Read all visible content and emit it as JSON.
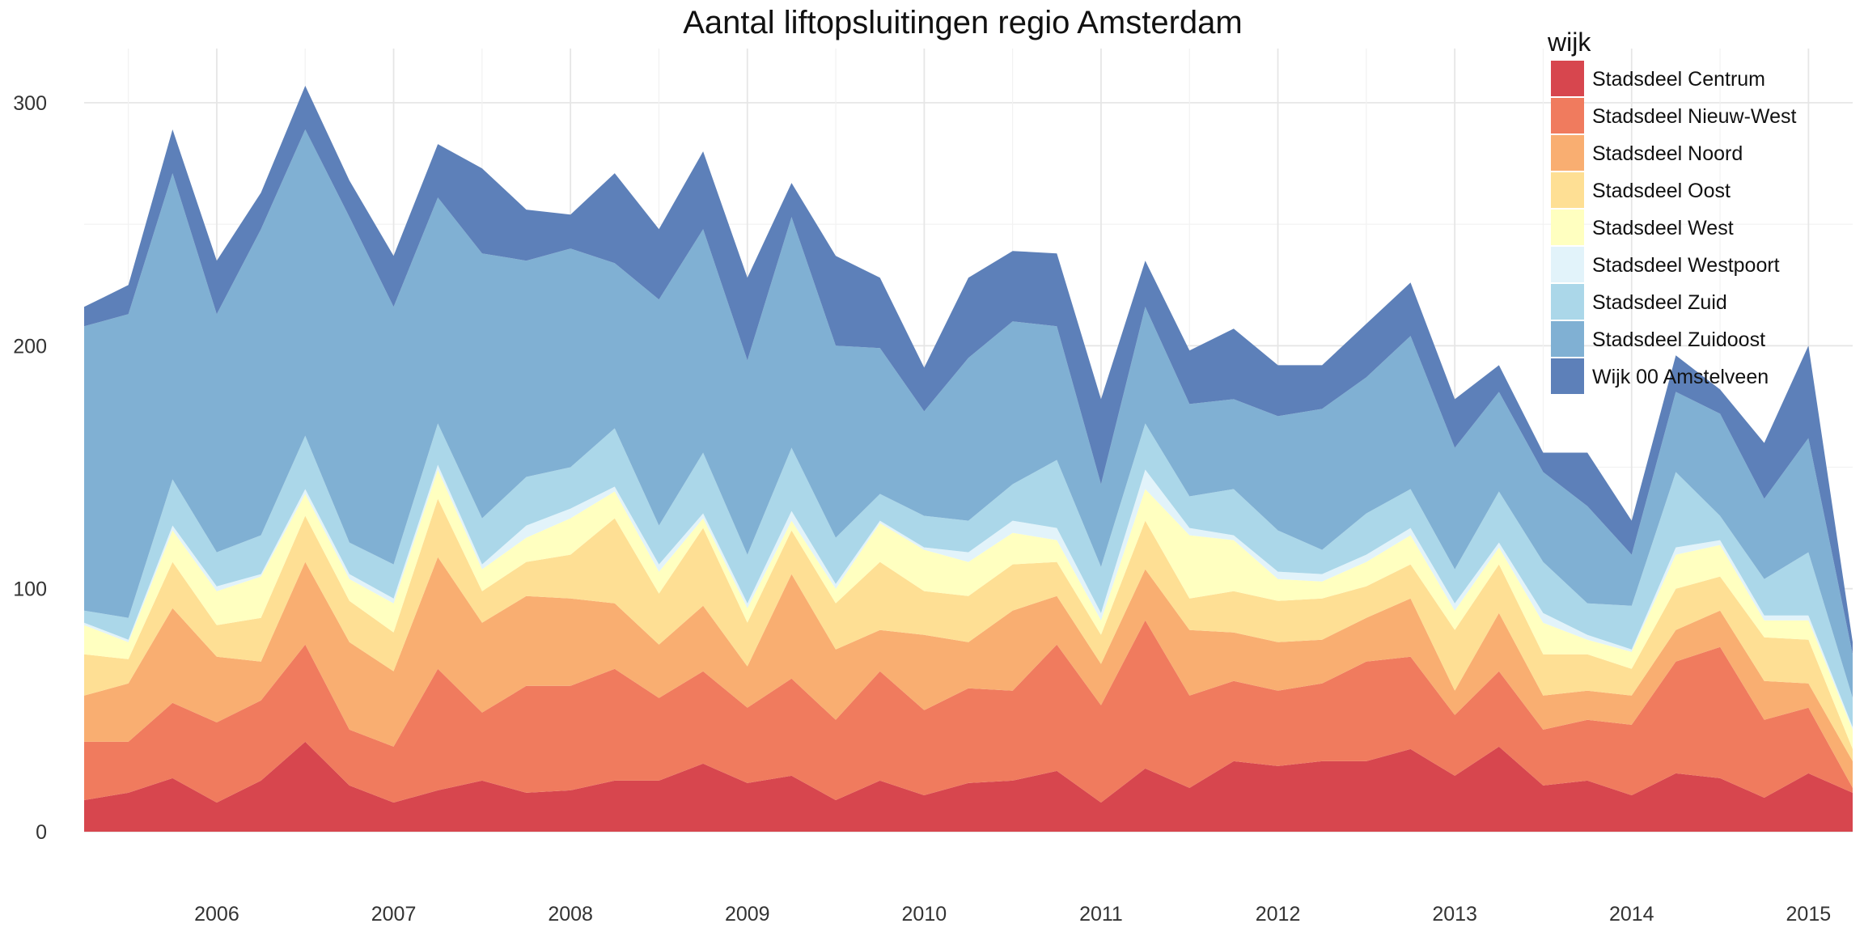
{
  "chart_data": {
    "type": "area",
    "stacked": true,
    "title": "Aantal liftopsluitingen regio Amsterdam",
    "xlabel": "",
    "ylabel": "",
    "x_ticks": [
      "2006",
      "2007",
      "2008",
      "2009",
      "2010",
      "2011",
      "2012",
      "2013",
      "2014",
      "2015"
    ],
    "y_ticks": [
      0,
      100,
      200,
      300
    ],
    "xlim": [
      2005.25,
      2015.25
    ],
    "ylim": [
      0,
      300
    ],
    "grid": true,
    "legend": {
      "title": "wijk",
      "position": "top-right"
    },
    "x": [
      2005.25,
      2005.5,
      2005.75,
      2006.0,
      2006.25,
      2006.5,
      2006.75,
      2007.0,
      2007.25,
      2007.5,
      2007.75,
      2008.0,
      2008.25,
      2008.5,
      2008.75,
      2009.0,
      2009.25,
      2009.5,
      2009.75,
      2010.0,
      2010.25,
      2010.5,
      2010.75,
      2011.0,
      2011.25,
      2011.5,
      2011.75,
      2012.0,
      2012.25,
      2012.5,
      2012.75,
      2013.0,
      2013.25,
      2013.5,
      2013.75,
      2014.0,
      2014.25,
      2014.5,
      2014.75,
      2015.0,
      2015.25
    ],
    "series": [
      {
        "name": "Stadsdeel Centrum",
        "color": "#d7464e",
        "values": [
          13,
          16,
          22,
          12,
          21,
          37,
          19,
          12,
          17,
          21,
          16,
          17,
          21,
          21,
          28,
          20,
          23,
          13,
          21,
          15,
          20,
          21,
          25,
          12,
          26,
          18,
          29,
          27,
          29,
          29,
          34,
          23,
          35,
          19,
          21,
          15,
          24,
          22,
          14,
          24,
          16
        ]
      },
      {
        "name": "Stadsdeel Nieuw-West",
        "color": "#f07b5e",
        "values": [
          24,
          21,
          31,
          33,
          33,
          40,
          23,
          23,
          50,
          28,
          44,
          43,
          46,
          34,
          38,
          31,
          40,
          33,
          45,
          35,
          39,
          37,
          52,
          40,
          61,
          38,
          33,
          31,
          32,
          41,
          38,
          25,
          31,
          23,
          25,
          29,
          46,
          54,
          32,
          27,
          2
        ]
      },
      {
        "name": "Stadsdeel Noord",
        "color": "#f9ae71",
        "values": [
          19,
          24,
          39,
          27,
          16,
          34,
          36,
          31,
          46,
          37,
          37,
          36,
          27,
          22,
          27,
          17,
          43,
          29,
          17,
          31,
          19,
          33,
          20,
          17,
          21,
          27,
          20,
          20,
          18,
          18,
          24,
          10,
          24,
          14,
          12,
          12,
          13,
          15,
          16,
          10,
          11
        ]
      },
      {
        "name": "Stadsdeel Oost",
        "color": "#fedf94",
        "values": [
          17,
          10,
          19,
          13,
          18,
          19,
          17,
          16,
          24,
          13,
          14,
          18,
          35,
          21,
          32,
          18,
          18,
          19,
          28,
          18,
          19,
          19,
          14,
          12,
          20,
          13,
          17,
          17,
          17,
          13,
          14,
          25,
          20,
          17,
          15,
          11,
          17,
          14,
          18,
          18,
          5
        ]
      },
      {
        "name": "Stadsdeel West",
        "color": "#ffffc0",
        "values": [
          12,
          7,
          13,
          14,
          17,
          9,
          9,
          12,
          12,
          9,
          10,
          15,
          11,
          9,
          4,
          6,
          4,
          6,
          16,
          17,
          14,
          13,
          9,
          6,
          13,
          26,
          21,
          9,
          7,
          10,
          12,
          8,
          7,
          13,
          6,
          7,
          14,
          13,
          7,
          8,
          8
        ]
      },
      {
        "name": "Stadsdeel Westpoort",
        "color": "#e2f3fa",
        "values": [
          1,
          1,
          2,
          2,
          1,
          2,
          2,
          2,
          2,
          2,
          5,
          4,
          2,
          3,
          2,
          2,
          4,
          2,
          1,
          1,
          4,
          5,
          5,
          3,
          8,
          3,
          2,
          3,
          3,
          3,
          3,
          3,
          2,
          4,
          2,
          1,
          3,
          2,
          2,
          2,
          1
        ]
      },
      {
        "name": "Stadsdeel Zuid",
        "color": "#abd7e9",
        "values": [
          5,
          9,
          19,
          14,
          16,
          22,
          13,
          14,
          17,
          19,
          20,
          17,
          24,
          16,
          25,
          20,
          26,
          19,
          11,
          13,
          13,
          15,
          28,
          19,
          19,
          13,
          19,
          17,
          10,
          17,
          16,
          14,
          21,
          21,
          13,
          18,
          31,
          10,
          15,
          26,
          12
        ]
      },
      {
        "name": "Stadsdeel Zuidoost",
        "color": "#80b0d3",
        "values": [
          117,
          125,
          126,
          98,
          126,
          126,
          134,
          106,
          93,
          109,
          89,
          90,
          68,
          93,
          92,
          80,
          95,
          79,
          60,
          43,
          67,
          67,
          55,
          34,
          48,
          38,
          37,
          47,
          58,
          56,
          63,
          50,
          41,
          37,
          40,
          21,
          33,
          42,
          33,
          47,
          18
        ]
      },
      {
        "name": "Wijk 00 Amstelveen",
        "color": "#5d80b9",
        "values": [
          8,
          12,
          18,
          22,
          15,
          18,
          15,
          21,
          22,
          35,
          21,
          14,
          37,
          29,
          32,
          34,
          14,
          37,
          29,
          18,
          33,
          29,
          30,
          35,
          19,
          22,
          29,
          21,
          18,
          22,
          22,
          20,
          11,
          8,
          22,
          14,
          15,
          10,
          23,
          38,
          5
        ]
      }
    ]
  }
}
